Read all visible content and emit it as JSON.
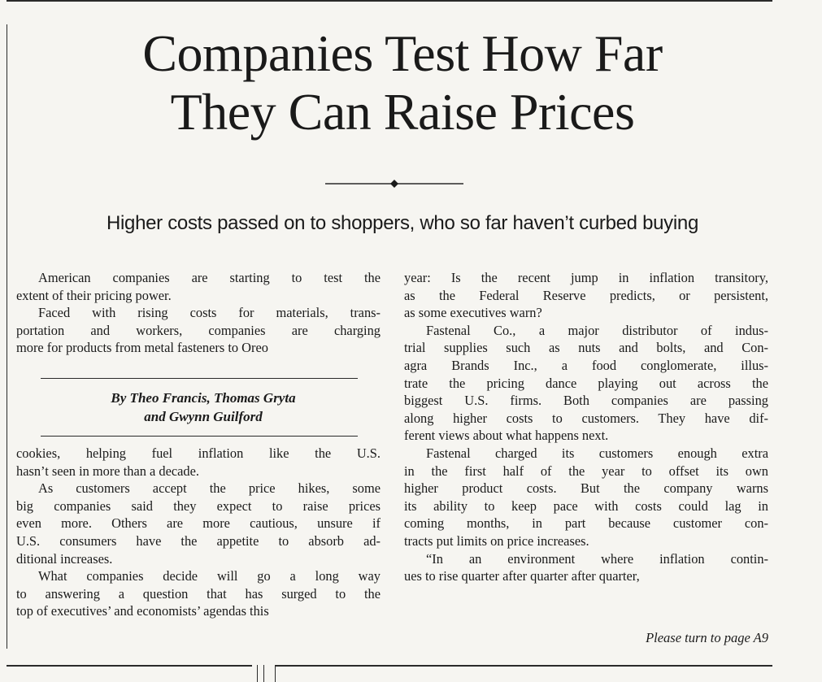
{
  "headline": {
    "line1": "Companies Test How Far",
    "line2": "They Can Raise Prices"
  },
  "subhead": "Higher costs passed on to shoppers, who so far haven’t curbed buying",
  "byline": {
    "line1": "By Theo Francis, Thomas Gryta",
    "line2": "and Gwynn Guilford"
  },
  "column1_top": [
    {
      "indent": true,
      "lines": [
        "American companies are starting to test the",
        "extent of their pricing power."
      ]
    },
    {
      "indent": true,
      "lines": [
        "Faced with rising costs for materials, trans-",
        "portation and workers, companies are charging",
        "more for products from metal fasteners to Oreo"
      ]
    }
  ],
  "column1_bottom": [
    {
      "indent": false,
      "lines": [
        "cookies, helping fuel inflation like the U.S.",
        "hasn’t seen in more than a decade."
      ]
    },
    {
      "indent": true,
      "lines": [
        "As customers accept the price hikes, some",
        "big companies said they expect to raise prices",
        "even more. Others are more cautious, unsure if",
        "U.S. consumers have the appetite to absorb ad-",
        "ditional increases."
      ]
    },
    {
      "indent": true,
      "lines": [
        "What companies decide will go a long way",
        "to answering a question that has surged to the",
        "top of executives’ and economists’ agendas this"
      ]
    }
  ],
  "column2": [
    {
      "indent": false,
      "lines": [
        "year: Is the recent jump in inflation transitory,",
        "as the Federal Reserve predicts, or persistent,",
        "as some executives warn?"
      ]
    },
    {
      "indent": true,
      "lines": [
        "Fastenal Co., a major distributor of indus-",
        "trial supplies such as nuts and bolts, and Con-",
        "agra Brands Inc., a food conglomerate, illus-",
        "trate the pricing dance playing out across the",
        "biggest U.S. firms. Both companies are passing",
        "along higher costs to customers. They have dif-",
        "ferent views about what happens next."
      ]
    },
    {
      "indent": true,
      "lines": [
        "Fastenal charged its customers enough extra",
        "in the first half of the year to offset its own",
        "higher product costs. But the company warns",
        "its ability to keep pace with costs could lag in",
        "coming months, in part because customer con-",
        "tracts put limits on price increases."
      ]
    },
    {
      "indent": true,
      "lines": [
        "“In an environment where inflation contin-",
        "ues to rise quarter after quarter after quarter,"
      ]
    }
  ],
  "jump_line": "Please turn to page A9"
}
